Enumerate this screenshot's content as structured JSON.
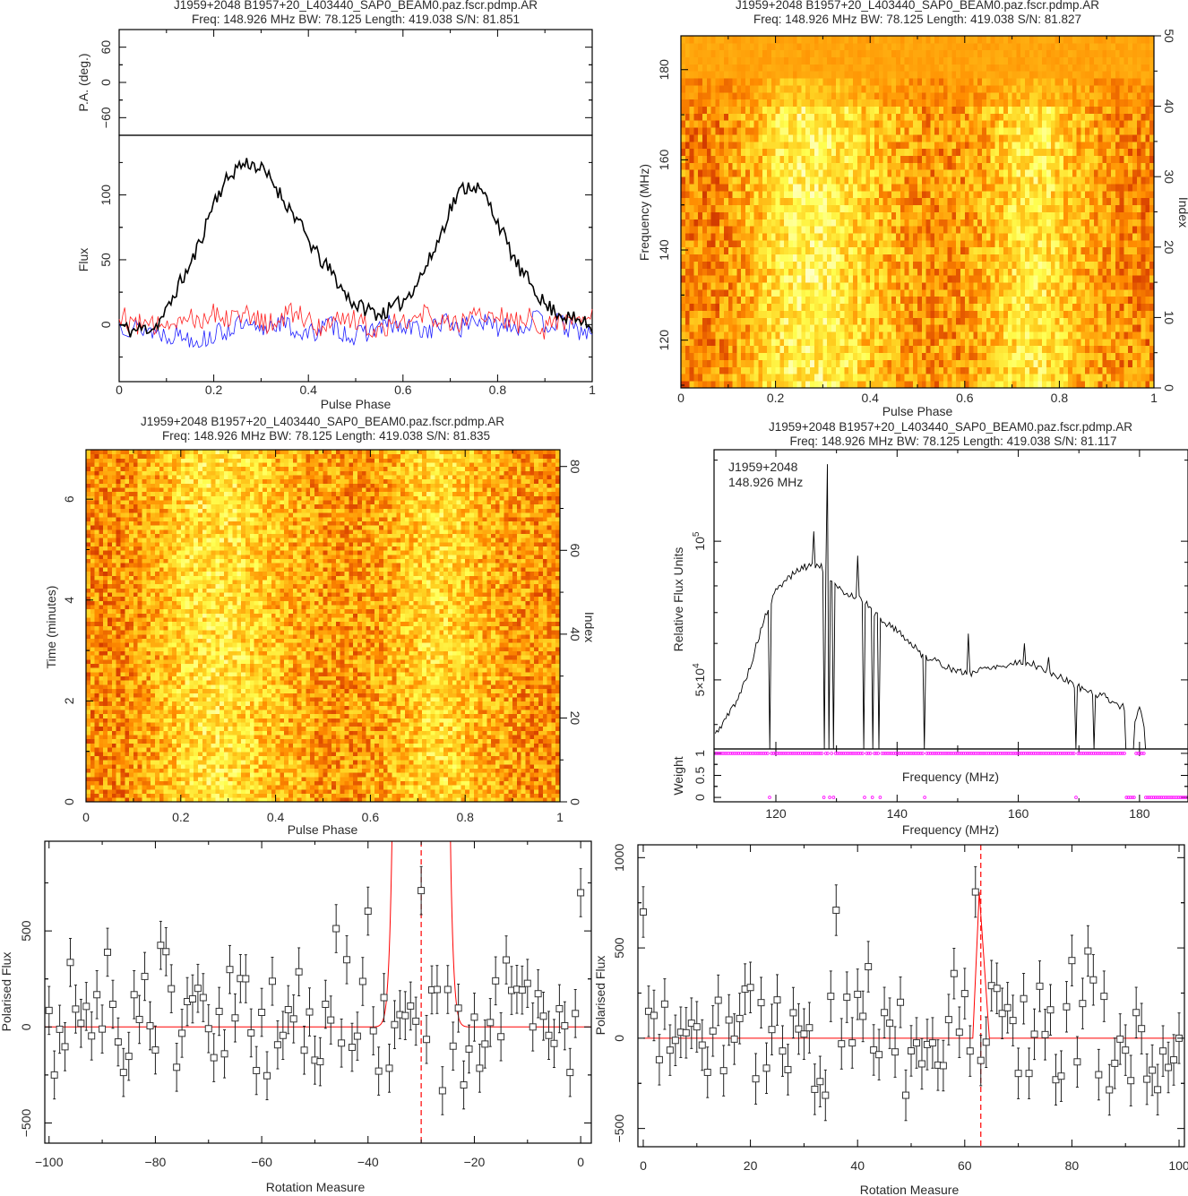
{
  "chart_data": [
    {
      "type": "line",
      "title": "J1959+2048 B1957+20_L403440_SAP0_BEAM0.paz.fscr.pdmp.AR",
      "subtitle": "Freq: 148.926 MHz BW: 78.125 Length: 419.038 S/N: 81.851",
      "xlabel": "Pulse Phase",
      "ylabel": "Flux",
      "pa_ylabel": "P.A. (deg.)",
      "xlim": [
        0,
        1
      ],
      "ylim": [
        -44,
        146
      ],
      "pa_ylim": [
        -90,
        90
      ],
      "x_ticks": [
        0,
        0.2,
        0.4,
        0.6,
        0.8,
        1
      ],
      "y_ticks": [
        0,
        50,
        100
      ],
      "pa_ticks": [
        -60,
        0,
        60
      ],
      "phase_step": 0.025,
      "series": [
        {
          "color": "#000000",
          "values": [
            0,
            -5,
            -3,
            -2,
            10,
            30,
            45,
            68,
            95,
            110,
            122,
            125,
            120,
            110,
            95,
            82,
            65,
            50,
            40,
            25,
            15,
            12,
            8,
            12,
            18,
            30,
            45,
            65,
            90,
            105,
            108,
            98,
            80,
            58,
            40,
            30,
            15,
            10,
            5,
            3,
            -2
          ]
        },
        {
          "color": "#ff2020",
          "values": [
            8,
            2,
            0,
            -3,
            5,
            3,
            8,
            4,
            10,
            6,
            12,
            5,
            2,
            0,
            6,
            10,
            4,
            -2,
            3,
            8,
            2,
            0,
            -5,
            3,
            6,
            2,
            10,
            4,
            -2,
            5,
            8,
            3,
            10,
            0,
            2,
            6,
            -3,
            5,
            2,
            4,
            8
          ]
        },
        {
          "color": "#2020ff",
          "values": [
            0,
            -2,
            -3,
            -5,
            -8,
            -7,
            -10,
            -12,
            -8,
            -5,
            0,
            -3,
            -6,
            2,
            0,
            -5,
            -8,
            -3,
            0,
            -6,
            -10,
            -5,
            -2,
            0,
            -4,
            -2,
            -5,
            0,
            2,
            -3,
            5,
            0,
            -2,
            3,
            -4,
            5,
            0,
            2,
            -3,
            -5,
            -8
          ]
        }
      ]
    },
    {
      "type": "heatmap",
      "title": "J1959+2048 B1957+20_L403440_SAP0_BEAM0.paz.fscr.pdmp.AR",
      "subtitle": "Freq: 148.926 MHz BW: 78.125 Length: 419.038 S/N: 81.827",
      "xlabel": "Pulse Phase",
      "ylabel": "Frequency (MHz)",
      "y2label": "Index",
      "xlim": [
        0,
        1
      ],
      "ylim": [
        109.4,
        187.5
      ],
      "y2lim": [
        0,
        50
      ],
      "x_ticks": [
        0,
        0.2,
        0.4,
        0.6,
        0.8,
        1
      ],
      "y_ticks": [
        120,
        140,
        160,
        180
      ],
      "y2_ticks": [
        0,
        10,
        20,
        30,
        40,
        50
      ],
      "colormap": [
        "#7a0000",
        "#d84000",
        "#ff8c00",
        "#ffd020",
        "#ffff50",
        "#ffffd0"
      ]
    },
    {
      "type": "heatmap",
      "title": "J1959+2048 B1957+20_L403440_SAP0_BEAM0.paz.fscr.pdmp.AR",
      "subtitle": "Freq: 148.926 MHz BW: 78.125 Length: 419.038 S/N: 81.835",
      "xlabel": "Pulse Phase",
      "ylabel": "Time (minutes)",
      "y2label": "Index",
      "xlim": [
        0,
        1
      ],
      "ylim": [
        0,
        6.98
      ],
      "y2lim": [
        0,
        84
      ],
      "x_ticks": [
        0,
        0.2,
        0.4,
        0.6,
        0.8,
        1
      ],
      "y_ticks": [
        0,
        2,
        4,
        6
      ],
      "y2_ticks": [
        0,
        20,
        40,
        60,
        80
      ],
      "colormap": [
        "#7a0000",
        "#d84000",
        "#ff8c00",
        "#ffd020",
        "#ffff50",
        "#ffffd0"
      ]
    },
    {
      "type": "line",
      "title": "J1959+2048 B1957+20_L403440_SAP0_BEAM0.paz.fscr.pdmp.AR",
      "subtitle": "Freq: 148.926 MHz BW: 78.125 Length: 419.038 S/N: 81.117",
      "annotation": [
        "J1959+2048",
        "148.926 MHz"
      ],
      "xlabel": "Frequency (MHz)",
      "ylabel": "Relative Flux Units",
      "yscale": "log",
      "xlim": [
        109.8,
        188
      ],
      "ylim": [
        35400,
        158000
      ],
      "x_ticks": [
        120,
        140,
        160,
        180
      ],
      "y_ticks": [
        {
          "value": 50000,
          "mantissa": "5×10",
          "exponent": "4"
        },
        {
          "value": 100000,
          "mantissa": "10",
          "exponent": "5"
        }
      ],
      "spectrum": [
        [
          110,
          38000
        ],
        [
          112,
          41700
        ],
        [
          114,
          46200
        ],
        [
          116,
          54400
        ],
        [
          118,
          67100
        ],
        [
          120,
          77900
        ],
        [
          122,
          83300
        ],
        [
          124,
          87100
        ],
        [
          126,
          89100
        ],
        [
          127.5,
          88000
        ],
        [
          130,
          79100
        ],
        [
          132,
          76700
        ],
        [
          134,
          75600
        ],
        [
          136,
          70200
        ],
        [
          138,
          66600
        ],
        [
          140,
          64200
        ],
        [
          142,
          60400
        ],
        [
          144,
          56900
        ],
        [
          146,
          55200
        ],
        [
          148,
          53600
        ],
        [
          150,
          52000
        ],
        [
          152,
          51700
        ],
        [
          154,
          52800
        ],
        [
          156,
          53600
        ],
        [
          158,
          53600
        ],
        [
          160,
          54900
        ],
        [
          162,
          54400
        ],
        [
          164,
          52800
        ],
        [
          166,
          51300
        ],
        [
          168,
          49800
        ],
        [
          170,
          48300
        ],
        [
          172,
          46900
        ],
        [
          174,
          46200
        ],
        [
          176,
          44500
        ],
        [
          177.5,
          43500
        ],
        [
          179.3,
          41000
        ],
        [
          180,
          43000
        ],
        [
          180.8,
          40000
        ]
      ],
      "spikes": [
        [
          126.2,
          105000
        ],
        [
          128.5,
          147000
        ],
        [
          133.5,
          93000
        ],
        [
          151.8,
          63000
        ],
        [
          160.9,
          60000
        ],
        [
          164.9,
          56000
        ]
      ],
      "zapped_mhz": [
        [
          118.8,
          119.2
        ],
        [
          127.9,
          128.2
        ],
        [
          128.7,
          128.9
        ],
        [
          129.4,
          129.7
        ],
        [
          134.4,
          134.7
        ],
        [
          135.9,
          136.2
        ],
        [
          136.9,
          137.2
        ],
        [
          144.4,
          144.7
        ],
        [
          169.4,
          169.7
        ],
        [
          172.4,
          172.6
        ],
        [
          177.6,
          179.2
        ],
        [
          180.9,
          188
        ]
      ],
      "weight_panel": {
        "ylabel": "Weight",
        "inner_label": "Frequency (MHz)",
        "ylim": [
          -0.1,
          1.1
        ],
        "y_ticks": [
          0,
          0.5,
          1
        ],
        "color": "#ff00ff"
      },
      "line_color": "#000000"
    },
    {
      "type": "scatter",
      "xlabel": "Rotation Measure",
      "ylabel": "Polarised Flux",
      "xlim": [
        -100.8,
        2
      ],
      "ylim": [
        -605,
        967
      ],
      "x_ticks": [
        -100,
        -80,
        -60,
        -40,
        -20,
        0
      ],
      "y_ticks": [
        -500,
        0,
        500
      ],
      "x_start": -100,
      "x_step": 1,
      "values": [
        86,
        -250,
        -12,
        -103,
        336,
        93,
        19,
        107,
        -47,
        168,
        -11,
        389,
        118,
        -78,
        -237,
        -153,
        168,
        39,
        263,
        6,
        -120,
        425,
        392,
        199,
        -210,
        -33,
        132,
        146,
        201,
        153,
        -9,
        -160,
        81,
        -140,
        299,
        47,
        252,
        251,
        -31,
        -227,
        76,
        -254,
        238,
        -93,
        -44,
        90,
        42,
        287,
        -121,
        78,
        -173,
        -181,
        118,
        36,
        512,
        -84,
        350,
        -106,
        -48,
        237,
        603,
        -20,
        -230,
        153,
        -215,
        12,
        64,
        59,
        109,
        30,
        710,
        -65,
        193,
        195,
        -332,
        195,
        -100,
        98,
        -302,
        -115,
        51,
        -215,
        -89,
        23,
        240,
        -51,
        349,
        190,
        196,
        192,
        227,
        0,
        173,
        56,
        -44,
        -86,
        95,
        6,
        -237,
        70,
        699
      ],
      "error": 125,
      "rm_marker": -30,
      "fit": {
        "type": "gaussian",
        "center": -30,
        "sigma": 1.8,
        "amplitude": 104000
      },
      "fit_color": "#ff0000"
    },
    {
      "type": "scatter",
      "xlabel": "Rotation Measure",
      "ylabel": "Polarised Flux",
      "xlim": [
        -1,
        101
      ],
      "ylim": [
        -601,
        1071
      ],
      "x_ticks": [
        0,
        20,
        40,
        60,
        80,
        100
      ],
      "y_ticks": [
        -500,
        0,
        500,
        1000
      ],
      "x_start": 0,
      "x_step": 1,
      "values": [
        699,
        149,
        126,
        -119,
        189,
        -66,
        -12,
        33,
        30,
        83,
        63,
        -38,
        -189,
        40,
        210,
        -180,
        101,
        -5,
        109,
        272,
        281,
        -225,
        197,
        -166,
        48,
        212,
        -71,
        -174,
        141,
        51,
        23,
        58,
        -283,
        -240,
        -316,
        232,
        709,
        -31,
        227,
        -26,
        243,
        121,
        396,
        -65,
        -91,
        142,
        83,
        -76,
        199,
        -316,
        -70,
        -26,
        -142,
        -35,
        -26,
        -149,
        -152,
        103,
        358,
        33,
        247,
        -71,
        810,
        -123,
        -22,
        291,
        276,
        137,
        169,
        98,
        -195,
        219,
        -195,
        22,
        288,
        20,
        157,
        -230,
        -210,
        174,
        430,
        -131,
        192,
        483,
        323,
        -202,
        232,
        -286,
        -139,
        -5,
        -66,
        -235,
        142,
        53,
        -227,
        -177,
        -285,
        -71,
        -162,
        -120,
        0
      ],
      "error": 140,
      "rm_marker": 63,
      "fit": {
        "type": "points",
        "points": [
          [
            0,
            0
          ],
          [
            61.5,
            0
          ],
          [
            62.7,
            810
          ],
          [
            64.6,
            0
          ],
          [
            100,
            0
          ]
        ]
      },
      "fit_color": "#ff0000"
    }
  ]
}
